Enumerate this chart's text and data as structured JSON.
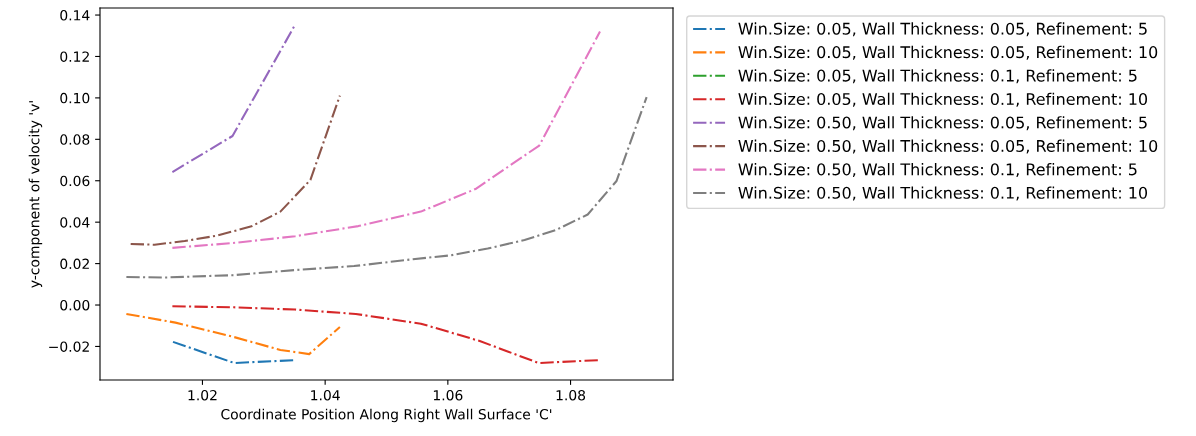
{
  "chart_data": {
    "type": "line",
    "xlabel": "Coordinate Position Along Right Wall Surface 'C'",
    "ylabel": "y-component of velocity 'v'",
    "xlim": [
      1.0033,
      1.0967
    ],
    "ylim": [
      -0.0362,
      0.1434
    ],
    "xticks": [
      {
        "value": 1.02,
        "label": "1.02"
      },
      {
        "value": 1.04,
        "label": "1.04"
      },
      {
        "value": 1.06,
        "label": "1.06"
      },
      {
        "value": 1.08,
        "label": "1.08"
      }
    ],
    "yticks": [
      {
        "value": -0.02,
        "label": "−0.02"
      },
      {
        "value": 0.0,
        "label": "0.00"
      },
      {
        "value": 0.02,
        "label": "0.02"
      },
      {
        "value": 0.04,
        "label": "0.04"
      },
      {
        "value": 0.06,
        "label": "0.06"
      },
      {
        "value": 0.08,
        "label": "0.08"
      },
      {
        "value": 0.1,
        "label": "0.10"
      },
      {
        "value": 0.12,
        "label": "0.12"
      },
      {
        "value": 0.14,
        "label": "0.14"
      }
    ],
    "grid": false,
    "legend": "top right",
    "marker": "none",
    "line_style": "dashdot",
    "series": [
      {
        "name": "Win.Size: 0.05, Wall Thickness: 0.05, Refinement: 5",
        "color": "#1f77b4",
        "x": [
          1.0152,
          1.0252,
          1.0351
        ],
        "values": [
          -0.0178,
          -0.028,
          -0.0266
        ]
      },
      {
        "name": "Win.Size: 0.05, Wall Thickness: 0.05, Refinement: 10",
        "color": "#ff7f0e",
        "x": [
          1.0076,
          1.0156,
          1.0252,
          1.0327,
          1.0374,
          1.0424
        ],
        "values": [
          -0.0043,
          -0.0085,
          -0.0155,
          -0.0217,
          -0.0237,
          -0.0106
        ]
      },
      {
        "name": "Win.Size: 0.05, Wall Thickness: 0.1, Refinement: 5",
        "color": "#2ca02c"
      },
      {
        "name": "Win.Size: 0.05, Wall Thickness: 0.1, Refinement: 10",
        "color": "#d62728",
        "x": [
          1.0151,
          1.0251,
          1.0351,
          1.045,
          1.0556,
          1.0652,
          1.0748,
          1.0847
        ],
        "values": [
          -0.0006,
          -0.0011,
          -0.0022,
          -0.0043,
          -0.009,
          -0.0174,
          -0.028,
          -0.0266
        ]
      },
      {
        "name": "Win.Size: 0.50, Wall Thickness: 0.05, Refinement: 5",
        "color": "#9467bd",
        "x": [
          1.0151,
          1.0249,
          1.0351
        ],
        "values": [
          0.0642,
          0.0816,
          0.1353
        ]
      },
      {
        "name": "Win.Size: 0.50, Wall Thickness: 0.05, Refinement: 10",
        "color": "#8c564b",
        "x": [
          1.0083,
          1.0122,
          1.0171,
          1.0224,
          1.028,
          1.0327,
          1.0376,
          1.0424
        ],
        "values": [
          0.0295,
          0.0291,
          0.0309,
          0.0335,
          0.038,
          0.0451,
          0.0604,
          0.1011
        ]
      },
      {
        "name": "Win.Size: 0.50, Wall Thickness: 0.1, Refinement: 5",
        "color": "#e377c2",
        "x": [
          1.0151,
          1.0249,
          1.0351,
          1.0454,
          1.0556,
          1.0645,
          1.0749,
          1.0848
        ],
        "values": [
          0.0276,
          0.0299,
          0.0332,
          0.0381,
          0.0451,
          0.056,
          0.077,
          0.132
        ]
      },
      {
        "name": "Win.Size: 0.50, Wall Thickness: 0.1, Refinement: 10",
        "color": "#7f7f7f",
        "x": [
          1.0076,
          1.014,
          1.0249,
          1.0351,
          1.0447,
          1.0543,
          1.0605,
          1.0665,
          1.0725,
          1.0776,
          1.0828,
          1.0875,
          1.0924
        ],
        "values": [
          0.0135,
          0.0133,
          0.0144,
          0.0169,
          0.0188,
          0.0221,
          0.024,
          0.0273,
          0.0314,
          0.0362,
          0.0437,
          0.0599,
          0.1004
        ]
      }
    ]
  }
}
